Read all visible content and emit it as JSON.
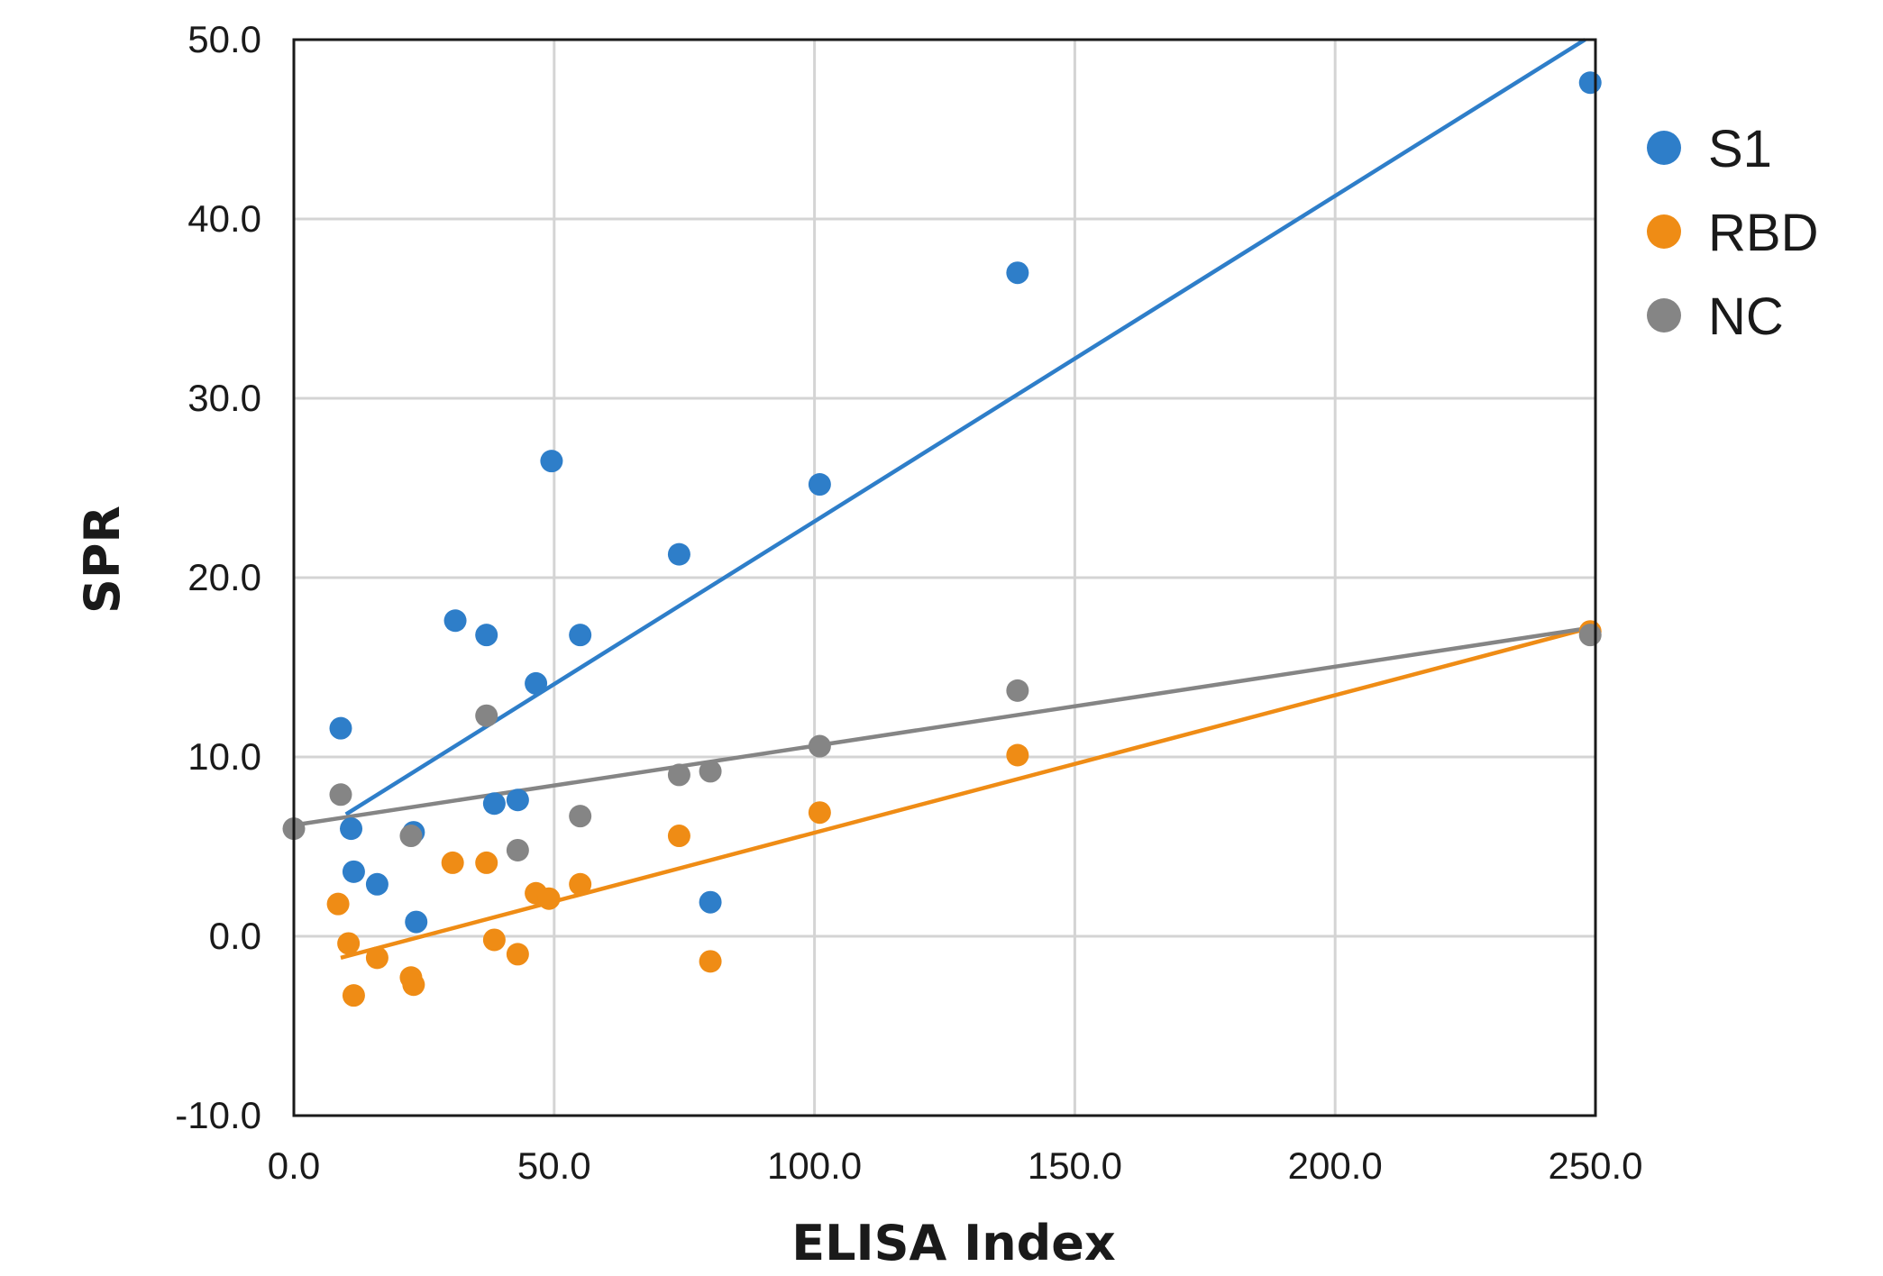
{
  "chart_data": {
    "type": "scatter",
    "title": "",
    "xlabel": "ELISA Index",
    "ylabel": "SPR",
    "xlim": [
      0,
      250
    ],
    "ylim": [
      -10,
      50
    ],
    "x_ticks": [
      "0.0",
      "50.0",
      "100.0",
      "150.0",
      "200.0",
      "250.0"
    ],
    "y_ticks": [
      "-10.0",
      "0.0",
      "10.0",
      "20.0",
      "30.0",
      "40.0",
      "50.0"
    ],
    "grid": true,
    "legend_position": "right",
    "series": [
      {
        "name": "S1",
        "color": "#2e7ec9",
        "points": [
          [
            9,
            11.6
          ],
          [
            11,
            6
          ],
          [
            11.5,
            3.6
          ],
          [
            16,
            2.9
          ],
          [
            23,
            5.8
          ],
          [
            23.5,
            0.8
          ],
          [
            31,
            17.6
          ],
          [
            37,
            16.8
          ],
          [
            38.5,
            7.4
          ],
          [
            43,
            7.6
          ],
          [
            46.5,
            14.1
          ],
          [
            49.5,
            26.5
          ],
          [
            55,
            16.8
          ],
          [
            74,
            21.3
          ],
          [
            80,
            1.9
          ],
          [
            101,
            25.2
          ],
          [
            139,
            37
          ],
          [
            249,
            47.6
          ]
        ],
        "trendline": [
          [
            10,
            6.8
          ],
          [
            248,
            50
          ]
        ]
      },
      {
        "name": "RBD",
        "color": "#ef8c15",
        "points": [
          [
            8.5,
            1.8
          ],
          [
            10.5,
            -0.4
          ],
          [
            11.5,
            -3.3
          ],
          [
            16,
            -1.2
          ],
          [
            22.5,
            -2.3
          ],
          [
            23,
            -2.7
          ],
          [
            30.5,
            4.1
          ],
          [
            37,
            4.1
          ],
          [
            38.5,
            -0.2
          ],
          [
            43,
            -1.0
          ],
          [
            46.5,
            2.4
          ],
          [
            49,
            2.1
          ],
          [
            55,
            2.9
          ],
          [
            74,
            5.6
          ],
          [
            80,
            -1.4
          ],
          [
            101,
            6.9
          ],
          [
            139,
            10.1
          ],
          [
            249,
            17
          ]
        ],
        "trendline": [
          [
            9,
            -1.2
          ],
          [
            249,
            17.2
          ]
        ]
      },
      {
        "name": "NC",
        "color": "#858585",
        "points": [
          [
            0,
            6
          ],
          [
            9,
            7.9
          ],
          [
            22.5,
            5.6
          ],
          [
            37,
            12.3
          ],
          [
            43,
            4.8
          ],
          [
            55,
            6.7
          ],
          [
            74,
            9
          ],
          [
            80,
            9.2
          ],
          [
            101,
            10.6
          ],
          [
            139,
            13.7
          ],
          [
            249,
            16.8
          ]
        ],
        "trendline": [
          [
            0,
            6.2
          ],
          [
            249,
            17.2
          ]
        ]
      }
    ]
  }
}
